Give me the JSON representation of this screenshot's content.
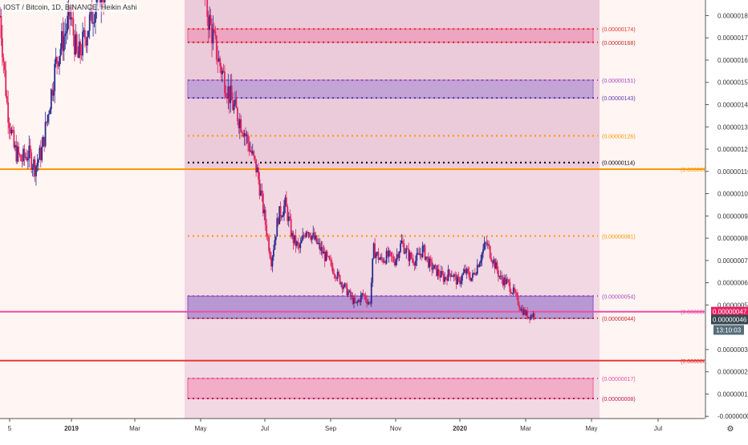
{
  "header": {
    "symbol_line": "IOST / Bitcoin, 1D, BINANCE, Heikin Ashi"
  },
  "chart_data": {
    "type": "candlestick",
    "title": "IOST / Bitcoin, 1D, BINANCE, Heikin Ashi",
    "ylim": [
      -1e-08,
      1.87e-06
    ],
    "y_ticks": [
      {
        "v": 1.8e-06,
        "label": "0.00000180"
      },
      {
        "v": 1.7e-06,
        "label": "0.00000170"
      },
      {
        "v": 1.6e-06,
        "label": "0.00000160"
      },
      {
        "v": 1.5e-06,
        "label": "0.00000150"
      },
      {
        "v": 1.4e-06,
        "label": "0.00000140"
      },
      {
        "v": 1.3e-06,
        "label": "0.00000130"
      },
      {
        "v": 1.2e-06,
        "label": "0.00000120"
      },
      {
        "v": 1.1e-06,
        "label": "0.00000110"
      },
      {
        "v": 1e-06,
        "label": "0.00000100"
      },
      {
        "v": 9e-07,
        "label": "0.00000090"
      },
      {
        "v": 8e-07,
        "label": "0.00000080"
      },
      {
        "v": 7e-07,
        "label": "0.00000070"
      },
      {
        "v": 6e-07,
        "label": "0.00000060"
      },
      {
        "v": 5e-07,
        "label": "0.00000050"
      },
      {
        "v": 3e-07,
        "label": "0.00000030"
      },
      {
        "v": 2e-07,
        "label": "0.00000020"
      },
      {
        "v": 1e-07,
        "label": "0.00000010"
      },
      {
        "v": 0.0,
        "label": "-0.00000000"
      }
    ],
    "x_ticks": [
      "5",
      "2019",
      "Mar",
      "May",
      "Jul",
      "Sep",
      "Nov",
      "2020",
      "Mar",
      "May",
      "Jul"
    ],
    "x_tick_years": [
      "2019",
      "2020"
    ],
    "price_levels": [
      {
        "value": 1.74e-06,
        "label": "(0.00000174)",
        "color": "#e53935",
        "style": "dotted"
      },
      {
        "value": 1.68e-06,
        "label": "(0.00000168)",
        "color": "#c62828",
        "style": "dotted"
      },
      {
        "value": 1.51e-06,
        "label": "(0.00000151)",
        "color": "#ab47bc",
        "style": "dotted"
      },
      {
        "value": 1.43e-06,
        "label": "(0.00000143)",
        "color": "#5e35b1",
        "style": "dotted"
      },
      {
        "value": 1.26e-06,
        "label": "(0.00000126)",
        "color": "#ff9800",
        "style": "dotted"
      },
      {
        "value": 1.14e-06,
        "label": "(0.00000114)",
        "color": "#000000",
        "style": "dotted"
      },
      {
        "value": 1.11e-06,
        "label": "(0.00000111)",
        "color": "#ff9800",
        "style": "solid"
      },
      {
        "value": 8.1e-07,
        "label": "(0.00000081)",
        "color": "#ff9800",
        "style": "dotted"
      },
      {
        "value": 5.4e-07,
        "label": "(0.00000054)",
        "color": "#ab47bc",
        "style": "dotted"
      },
      {
        "value": 4.7e-07,
        "label": "(0.00000047)",
        "color": "#ec4fa6",
        "style": "solid"
      },
      {
        "value": 4.4e-07,
        "label": "(0.00000044)",
        "color": "#c62828",
        "style": "dotted"
      },
      {
        "value": 2.5e-07,
        "label": "(0.00000025)",
        "color": "#e53935",
        "style": "solid"
      },
      {
        "value": 1.7e-07,
        "label": "(0.00000017)",
        "color": "#ec4fa6",
        "style": "dotted"
      },
      {
        "value": 8e-08,
        "label": "(0.00000008)",
        "color": "#c2185b",
        "style": "dotted"
      }
    ],
    "zones": [
      {
        "from": 1.68e-06,
        "to": 1.74e-06,
        "color": "#f06292",
        "opacity": 0.35
      },
      {
        "from": 1.43e-06,
        "to": 1.51e-06,
        "color": "#9575cd",
        "opacity": 0.45
      },
      {
        "from": 4.4e-07,
        "to": 5.4e-07,
        "color": "#7e57c2",
        "opacity": 0.5
      },
      {
        "from": 8e-08,
        "to": 1.7e-07,
        "color": "#f06292",
        "opacity": 0.35
      }
    ],
    "last_price": {
      "value": 4.7e-07,
      "label": "0.00000047",
      "color": "#e91e63"
    },
    "current_price": {
      "value": 4.6e-07,
      "label": "0.00000046",
      "color": "#37474f"
    },
    "countdown": {
      "label": "13:10:03",
      "color": "#546e7a"
    },
    "price_path": [
      [
        0.0,
        1.8e-06
      ],
      [
        0.01,
        1.4e-06
      ],
      [
        0.02,
        1.2e-06
      ],
      [
        0.03,
        1.15e-06
      ],
      [
        0.04,
        1.18e-06
      ],
      [
        0.05,
        1.12e-06
      ],
      [
        0.06,
        1.2e-06
      ],
      [
        0.07,
        1.4e-06
      ],
      [
        0.08,
        1.6e-06
      ],
      [
        0.09,
        1.7e-06
      ],
      [
        0.1,
        1.8e-06
      ],
      [
        0.11,
        1.6e-06
      ],
      [
        0.12,
        1.7e-06
      ],
      [
        0.13,
        1.8e-06
      ],
      [
        0.14,
        1.9e-06
      ],
      [
        0.15,
        1.9e-06
      ],
      [
        0.29,
        1.9e-06
      ],
      [
        0.295,
        1.8e-06
      ],
      [
        0.31,
        1.6e-06
      ],
      [
        0.32,
        1.5e-06
      ],
      [
        0.33,
        1.4e-06
      ],
      [
        0.345,
        1.3e-06
      ],
      [
        0.355,
        1.2e-06
      ],
      [
        0.365,
        1.1e-06
      ],
      [
        0.375,
        9e-07
      ],
      [
        0.385,
        7e-07
      ],
      [
        0.395,
        9e-07
      ],
      [
        0.405,
        9.5e-07
      ],
      [
        0.415,
        8e-07
      ],
      [
        0.425,
        7.5e-07
      ],
      [
        0.435,
        8.5e-07
      ],
      [
        0.445,
        8e-07
      ],
      [
        0.455,
        7.5e-07
      ],
      [
        0.465,
        7e-07
      ],
      [
        0.475,
        6.5e-07
      ],
      [
        0.485,
        6e-07
      ],
      [
        0.495,
        5.5e-07
      ],
      [
        0.505,
        5e-07
      ],
      [
        0.515,
        5.5e-07
      ],
      [
        0.525,
        5e-07
      ],
      [
        0.53,
        7.5e-07
      ],
      [
        0.54,
        7e-07
      ],
      [
        0.55,
        7.2e-07
      ],
      [
        0.56,
        7e-07
      ],
      [
        0.57,
        7.8e-07
      ],
      [
        0.58,
        7.2e-07
      ],
      [
        0.59,
        7e-07
      ],
      [
        0.6,
        7.5e-07
      ],
      [
        0.61,
        6.8e-07
      ],
      [
        0.62,
        6.5e-07
      ],
      [
        0.63,
        6.2e-07
      ],
      [
        0.64,
        6.5e-07
      ],
      [
        0.65,
        6e-07
      ],
      [
        0.66,
        6.5e-07
      ],
      [
        0.67,
        6.2e-07
      ],
      [
        0.68,
        7e-07
      ],
      [
        0.69,
        7.8e-07
      ],
      [
        0.7,
        7e-07
      ],
      [
        0.71,
        6.2e-07
      ],
      [
        0.72,
        6e-07
      ],
      [
        0.73,
        5.5e-07
      ],
      [
        0.74,
        4.8e-07
      ],
      [
        0.75,
        4.5e-07
      ],
      [
        0.76,
        4.6e-07
      ]
    ]
  }
}
